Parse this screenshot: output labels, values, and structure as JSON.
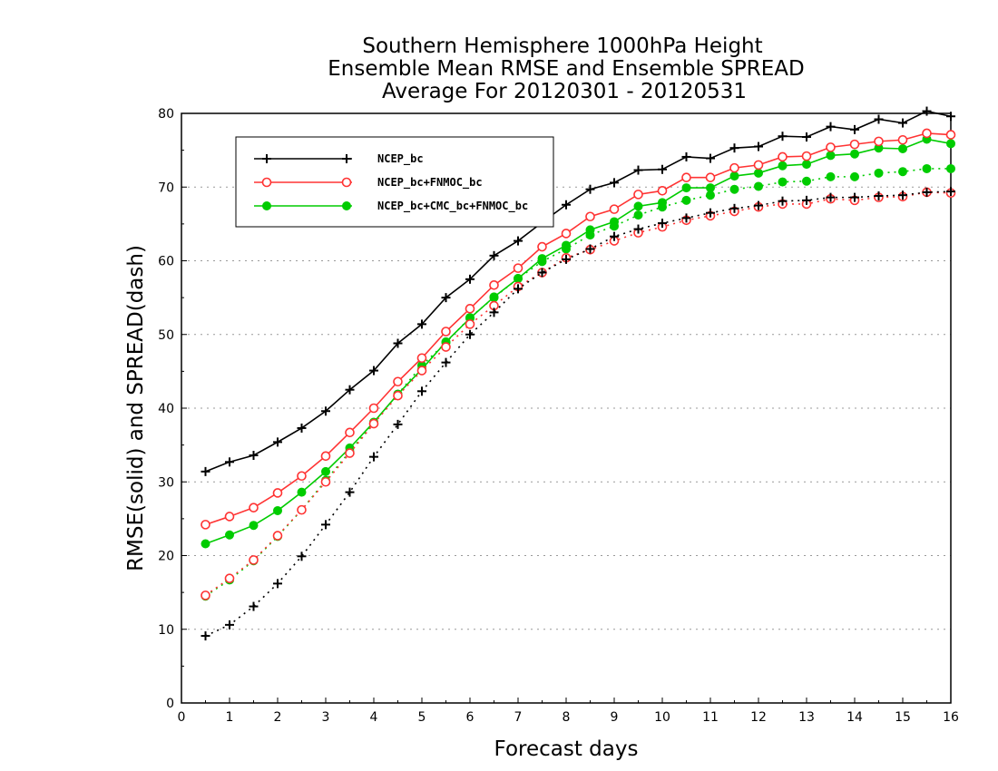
{
  "chart_data": {
    "type": "line",
    "title": [
      "Southern Hemisphere 1000hPa Height",
      "Ensemble Mean RMSE and Ensemble SPREAD",
      "Average For 20120301 - 20120531"
    ],
    "xlabel": "Forecast days",
    "ylabel": "RMSE(solid) and SPREAD(dash)",
    "xlim": [
      0,
      16
    ],
    "ylim": [
      0,
      80
    ],
    "xticks": [
      0,
      1,
      2,
      3,
      4,
      5,
      6,
      7,
      8,
      9,
      10,
      11,
      12,
      13,
      14,
      15,
      16
    ],
    "yticks": [
      0,
      10,
      20,
      30,
      40,
      50,
      60,
      70,
      80
    ],
    "grid": "horizontal dotted",
    "legend_position": "top-left",
    "x": [
      0.5,
      1,
      1.5,
      2,
      2.5,
      3,
      3.5,
      4,
      4.5,
      5,
      5.5,
      6,
      6.5,
      7,
      7.5,
      8,
      8.5,
      9,
      9.5,
      10,
      10.5,
      11,
      11.5,
      12,
      12.5,
      13,
      13.5,
      14,
      14.5,
      15,
      15.5,
      16
    ],
    "series": [
      {
        "name": "NCEP_bc",
        "color": "#000000",
        "marker": "plus",
        "rmse": [
          31.4,
          32.7,
          33.6,
          35.4,
          37.3,
          39.6,
          42.5,
          45.1,
          48.8,
          51.4,
          55.0,
          57.5,
          60.7,
          62.7,
          65.2,
          67.6,
          69.7,
          70.6,
          72.3,
          72.4,
          74.1,
          73.9,
          75.3,
          75.5,
          76.9,
          76.8,
          78.2,
          77.8,
          79.2,
          78.7,
          80.3,
          79.6
        ],
        "spread": [
          9.1,
          10.6,
          13.1,
          16.2,
          19.9,
          24.2,
          28.6,
          33.4,
          37.8,
          42.3,
          46.2,
          50.0,
          53.0,
          56.2,
          58.4,
          60.2,
          61.6,
          63.3,
          64.3,
          65.1,
          65.8,
          66.5,
          67.1,
          67.5,
          68.1,
          68.2,
          68.6,
          68.6,
          68.8,
          68.9,
          69.3,
          69.4
        ]
      },
      {
        "name": "NCEP_bc+FNMOC_bc",
        "color": "#ff3333",
        "marker": "open-circle",
        "rmse": [
          24.2,
          25.3,
          26.5,
          28.5,
          30.8,
          33.5,
          36.7,
          40.0,
          43.6,
          46.8,
          50.4,
          53.5,
          56.7,
          59.0,
          61.9,
          63.7,
          66.0,
          67.0,
          69.0,
          69.5,
          71.3,
          71.3,
          72.6,
          73.0,
          74.1,
          74.2,
          75.4,
          75.8,
          76.2,
          76.4,
          77.3,
          77.1
        ],
        "spread": [
          14.6,
          16.9,
          19.4,
          22.7,
          26.2,
          30.0,
          33.9,
          37.9,
          41.7,
          45.1,
          48.3,
          51.4,
          53.9,
          56.5,
          58.4,
          60.4,
          61.5,
          62.7,
          63.8,
          64.6,
          65.5,
          66.1,
          66.7,
          67.3,
          67.7,
          67.7,
          68.4,
          68.2,
          68.6,
          68.7,
          69.3,
          69.2
        ]
      },
      {
        "name": "NCEP_bc+CMC_bc+FNMOC_bc",
        "color": "#00cc00",
        "marker": "filled-circle",
        "rmse": [
          21.6,
          22.8,
          24.1,
          26.1,
          28.6,
          31.4,
          34.6,
          38.1,
          41.9,
          45.3,
          49.0,
          52.2,
          55.1,
          57.6,
          60.3,
          62.1,
          64.2,
          65.3,
          67.4,
          67.9,
          69.9,
          69.9,
          71.5,
          71.9,
          72.9,
          73.1,
          74.3,
          74.5,
          75.3,
          75.2,
          76.5,
          75.9
        ],
        "spread": [
          14.5,
          16.7,
          19.3,
          22.6,
          26.2,
          30.2,
          34.1,
          38.0,
          41.9,
          45.8,
          48.9,
          52.3,
          55.0,
          57.6,
          59.9,
          61.6,
          63.5,
          64.7,
          66.2,
          67.3,
          68.2,
          68.9,
          69.7,
          70.1,
          70.7,
          70.8,
          71.4,
          71.4,
          71.9,
          72.1,
          72.5,
          72.5
        ]
      }
    ]
  }
}
